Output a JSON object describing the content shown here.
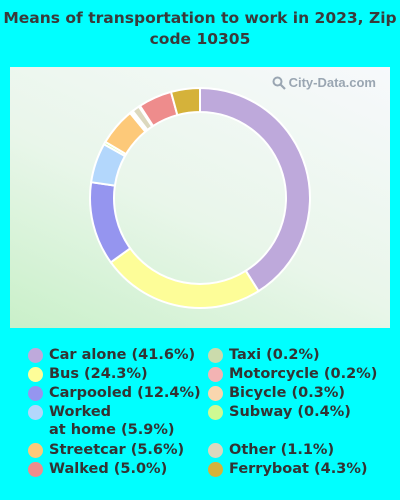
{
  "title": "Means of transportation to work in 2023, Zip code 10305",
  "watermark": "City-Data.com",
  "chart_data": {
    "type": "donut",
    "title": "Means of transportation to work in 2023, Zip code 10305",
    "slices": [
      {
        "name": "Car alone",
        "value": 41.6,
        "color": "#BEA9DB",
        "label": "Car alone (41.6%)"
      },
      {
        "name": "Bus",
        "value": 24.3,
        "color": "#FDFD98",
        "label": "Bus (24.3%)"
      },
      {
        "name": "Carpooled",
        "value": 12.4,
        "color": "#9595EF",
        "label": "Carpooled (12.4%)"
      },
      {
        "name": "Worked at home",
        "value": 5.9,
        "color": "#B3D7FC",
        "label": "Worked at home (5.9%)"
      },
      {
        "name": "Subway",
        "value": 0.4,
        "color": "#CEFA92",
        "label": "Subway (0.4%)"
      },
      {
        "name": "Streetcar",
        "value": 5.6,
        "color": "#FDC979",
        "label": "Streetcar (5.6%)"
      },
      {
        "name": "Bicycle",
        "value": 0.3,
        "color": "#F9D6AE",
        "label": "Bicycle (0.3%)"
      },
      {
        "name": "Taxi",
        "value": 0.2,
        "color": "#CBDBAC",
        "label": "Taxi (0.2%)"
      },
      {
        "name": "Other",
        "value": 1.1,
        "color": "#DCD8BE",
        "label": "Other (1.1%)"
      },
      {
        "name": "Motorcycle",
        "value": 0.2,
        "color": "#F3B3B3",
        "label": "Motorcycle (0.2%)"
      },
      {
        "name": "Walked",
        "value": 5.0,
        "color": "#EE8C8C",
        "label": "Walked (5.0%)"
      },
      {
        "name": "Ferryboat",
        "value": 4.3,
        "color": "#D5B23A",
        "label": "Ferryboat (4.3%)"
      }
    ]
  },
  "legend": {
    "left": [
      {
        "lines": [
          "Car alone (41.6%)"
        ],
        "color": "#BEA9DB"
      },
      {
        "lines": [
          "Bus (24.3%)"
        ],
        "color": "#FDFD98"
      },
      {
        "lines": [
          "Carpooled (12.4%)"
        ],
        "color": "#9595EF"
      },
      {
        "lines": [
          "Worked",
          "at home (5.9%)"
        ],
        "color": "#B3D7FC"
      },
      {
        "lines": [
          "Streetcar (5.6%)"
        ],
        "color": "#FDC979"
      },
      {
        "lines": [
          "Walked (5.0%)"
        ],
        "color": "#EE8C8C"
      }
    ],
    "right": [
      {
        "lines": [
          "Taxi (0.2%)"
        ],
        "color": "#CBDBAC"
      },
      {
        "lines": [
          "Motorcycle (0.2%)"
        ],
        "color": "#F3B3B3"
      },
      {
        "lines": [
          "Bicycle (0.3%)"
        ],
        "color": "#F9D6AE"
      },
      {
        "lines": [
          "Subway (0.4%)"
        ],
        "color": "#CEFA92"
      },
      {
        "lines": [
          "Other (1.1%)"
        ],
        "color": "#DCD8BE"
      },
      {
        "lines": [
          "Ferryboat (4.3%)"
        ],
        "color": "#D5B23A"
      }
    ]
  }
}
